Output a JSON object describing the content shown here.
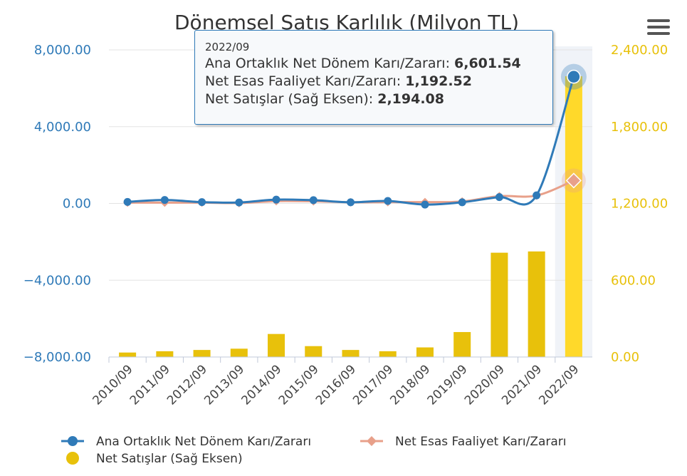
{
  "chart_data": {
    "type": "bar",
    "title": "Dönemsel Satış Karlılık (Milyon TL)",
    "categories": [
      "2010/09",
      "2011/09",
      "2012/09",
      "2013/09",
      "2014/09",
      "2015/09",
      "2016/09",
      "2017/09",
      "2018/09",
      "2019/09",
      "2020/09",
      "2021/09",
      "2022/09"
    ],
    "series": [
      {
        "name": "Ana Ortaklık Net Dönem Karı/Zararı",
        "type": "line",
        "axis": "left",
        "values": [
          80,
          180,
          70,
          50,
          200,
          170,
          60,
          130,
          -60,
          60,
          330,
          420,
          6601.54
        ]
      },
      {
        "name": "Net Esas Faaliyet Karı/Zararı",
        "type": "line",
        "axis": "left",
        "values": [
          40,
          40,
          40,
          20,
          120,
          110,
          60,
          70,
          70,
          100,
          380,
          410,
          1192.52
        ]
      },
      {
        "name": "Net Satışlar (Sağ Eksen)",
        "type": "bar",
        "axis": "right",
        "values": [
          35,
          45,
          55,
          65,
          180,
          85,
          55,
          45,
          75,
          195,
          815,
          825,
          2194.08
        ]
      }
    ],
    "y_left": {
      "ylim": [
        -8000,
        8000
      ],
      "ticks": [
        "8,000.00",
        "4,000.00",
        "0.00",
        "−4,000.00",
        "−8,000.00"
      ]
    },
    "y_right": {
      "ylim": [
        0,
        2400
      ],
      "ticks": [
        "2,400.00",
        "1,800.00",
        "1,200.00",
        "600.00",
        "0.00"
      ]
    },
    "colors": {
      "line1": "#2f7ab8",
      "line2": "#e8a08a",
      "bars": "#e8c10b",
      "bar_highlight": "#ffd92a"
    },
    "legend_placement": "bottom-left",
    "grid": true
  },
  "tooltip": {
    "date": "2022/09",
    "rows": [
      {
        "label": "Ana Ortaklık Net Dönem Karı/Zararı: ",
        "value": "6,601.54"
      },
      {
        "label": "Net Esas Faaliyet Karı/Zararı: ",
        "value": "1,192.52"
      },
      {
        "label": "Net Satışlar (Sağ Eksen): ",
        "value": "2,194.08"
      }
    ]
  },
  "menu_icon": "hamburger-menu-icon"
}
